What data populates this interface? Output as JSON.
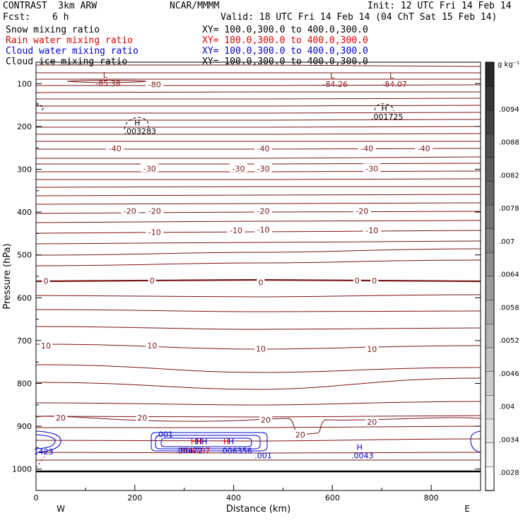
{
  "header": {
    "model": "CONTRAST  3km ARW",
    "org": "NCAR/MMMM",
    "init": "Init: 12 UTC Fri 14 Feb 14",
    "fcst_label": "Fcst:",
    "fcst_value": "6 h",
    "valid": "Valid: 18 UTC Fri 14 Feb 14 (04 ChT Sat 15 Feb 14)"
  },
  "fields": [
    {
      "name": "Snow mixing ratio",
      "xy": "XY= 100.0,300.0 to 400.0,300.0",
      "color": "#000000"
    },
    {
      "name": "Rain water mixing ratio",
      "xy": "XY= 100.0,300.0 to 400.0,300.0",
      "color": "#e00000"
    },
    {
      "name": "Cloud water mixing ratio",
      "xy": "XY= 100.0,300.0 to 400.0,300.0",
      "color": "#0000cc"
    },
    {
      "name": "Cloud ice mixing ratio",
      "xy": "XY= 100.0,300.0 to 400.0,300.0",
      "color": "#000000"
    }
  ],
  "chart_data": {
    "type": "contour-cross-section",
    "xlabel": "Distance (km)",
    "ylabel": "Pressure (hPa)",
    "xlim": [
      0,
      900
    ],
    "ylim": [
      1050,
      50
    ],
    "x_ticks": [
      0,
      200,
      400,
      600,
      800
    ],
    "y_ticks": [
      100,
      200,
      300,
      400,
      500,
      600,
      700,
      800,
      900,
      1000
    ],
    "x_end_labels": {
      "left": "W",
      "right": "E"
    },
    "temperature_contour_labels": [
      {
        "x": 240,
        "p": 102,
        "text": "-80"
      },
      {
        "x": 160,
        "p": 251,
        "text": "-40"
      },
      {
        "x": 460,
        "p": 251,
        "text": "-40"
      },
      {
        "x": 670,
        "p": 251,
        "text": "-40"
      },
      {
        "x": 785,
        "p": 251,
        "text": "-40"
      },
      {
        "x": 230,
        "p": 298,
        "text": "-30"
      },
      {
        "x": 410,
        "p": 298,
        "text": "-30"
      },
      {
        "x": 460,
        "p": 298,
        "text": "-30"
      },
      {
        "x": 680,
        "p": 298,
        "text": "-30"
      },
      {
        "x": 190,
        "p": 397,
        "text": "-20"
      },
      {
        "x": 240,
        "p": 397,
        "text": "-20"
      },
      {
        "x": 460,
        "p": 397,
        "text": "-20"
      },
      {
        "x": 660,
        "p": 397,
        "text": "-20"
      },
      {
        "x": 240,
        "p": 447,
        "text": "-10"
      },
      {
        "x": 405,
        "p": 443,
        "text": "-10"
      },
      {
        "x": 460,
        "p": 441,
        "text": "-10"
      },
      {
        "x": 680,
        "p": 443,
        "text": "-10"
      },
      {
        "x": 20,
        "p": 561,
        "text": "0"
      },
      {
        "x": 235,
        "p": 560,
        "text": "0"
      },
      {
        "x": 455,
        "p": 564,
        "text": "0"
      },
      {
        "x": 650,
        "p": 560,
        "text": "0"
      },
      {
        "x": 685,
        "p": 560,
        "text": "0"
      },
      {
        "x": 20,
        "p": 712,
        "text": "10"
      },
      {
        "x": 235,
        "p": 712,
        "text": "10"
      },
      {
        "x": 455,
        "p": 719,
        "text": "10"
      },
      {
        "x": 680,
        "p": 720,
        "text": "10"
      },
      {
        "x": 50,
        "p": 880,
        "text": "20"
      },
      {
        "x": 215,
        "p": 880,
        "text": "20"
      },
      {
        "x": 465,
        "p": 885,
        "text": "20"
      },
      {
        "x": 535,
        "p": 920,
        "text": "20"
      },
      {
        "x": 680,
        "p": 890,
        "text": "20"
      }
    ],
    "extrema": [
      {
        "x": 140,
        "p": 86,
        "label": "L",
        "value": "-85.38",
        "color": "#8b1a1a"
      },
      {
        "x": 600,
        "p": 88,
        "label": "L",
        "value": "-84.26",
        "color": "#8b1a1a"
      },
      {
        "x": 720,
        "p": 88,
        "label": "L",
        "value": "-84.07",
        "color": "#8b1a1a"
      },
      {
        "x": 205,
        "p": 198,
        "label": "H",
        "value": ".003283",
        "color": "#000000"
      },
      {
        "x": 705,
        "p": 164,
        "label": "H",
        "value": ".001725",
        "color": "#000000"
      },
      {
        "x": 655,
        "p": 955,
        "label": "H",
        "value": ".0043",
        "color": "#0000cc"
      }
    ],
    "cloud_water_labels": [
      {
        "x": 260,
        "p": 925,
        "text": ".001",
        "color": "#0000cc"
      },
      {
        "x": 460,
        "p": 975,
        "text": ".001",
        "color": "#0000cc"
      },
      {
        "x": 335,
        "p": 942,
        "text": "HH",
        "color": "#0000cc"
      },
      {
        "x": 395,
        "p": 942,
        "text": "H",
        "color": "#0000cc"
      },
      {
        "x": 405,
        "p": 963,
        "text": ".006356",
        "color": "#0000cc"
      },
      {
        "x": 15,
        "p": 966,
        "text": "1423",
        "color": "#0000cc"
      }
    ],
    "rain_labels": [
      {
        "x": 325,
        "p": 942,
        "text": "HH",
        "color": "#e00000"
      },
      {
        "x": 385,
        "p": 942,
        "text": "H",
        "color": "#e00000"
      },
      {
        "x": 320,
        "p": 963,
        "text": ".004707",
        "color": "#e00000"
      },
      {
        "x": 310,
        "p": 963,
        "text": ".00472",
        "color": "#0000cc"
      }
    ],
    "colorbar": {
      "units": "g kg⁻¹",
      "labels": [
        ".0094",
        ".0088",
        ".0082",
        ".0078",
        ".007",
        ".0064",
        ".0058",
        ".0052",
        ".0046",
        ".004",
        ".0034",
        ".0028"
      ]
    }
  }
}
